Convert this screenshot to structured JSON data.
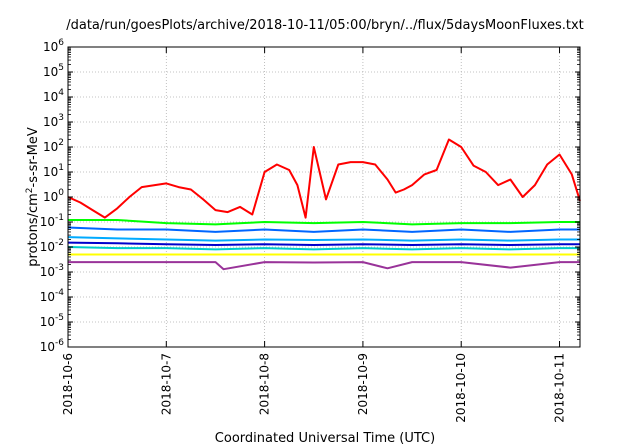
{
  "chart_data": {
    "type": "line",
    "title": "/data/run/goesPlots/archive/2018-10-11/05:00/bryn/../flux/5daysMoonFluxes.txt",
    "xlabel": "Coordinated Universal Time (UTC)",
    "ylabel": "protons/cm²-s-sr-MeV",
    "ylabel_parts": {
      "pre": "protons/cm",
      "sup": "2",
      "post": "-s-sr-MeV"
    },
    "xscale": "time",
    "xlim": [
      "2018-10-06T00:00",
      "2018-10-11T05:00"
    ],
    "xticks": [
      "2018-10-6",
      "2018-10-7",
      "2018-10-8",
      "2018-10-9",
      "2018-10-10",
      "2018-10-11"
    ],
    "yscale": "log",
    "ylim": [
      1e-06,
      1000000.0
    ],
    "yticks": [
      {
        "value": 1e-06,
        "base": "10",
        "exp": "-6"
      },
      {
        "value": 1e-05,
        "base": "10",
        "exp": "-5"
      },
      {
        "value": 0.0001,
        "base": "10",
        "exp": "-4"
      },
      {
        "value": 0.001,
        "base": "10",
        "exp": "-3"
      },
      {
        "value": 0.01,
        "base": "10",
        "exp": "-2"
      },
      {
        "value": 0.1,
        "base": "10",
        "exp": "-1"
      },
      {
        "value": 1,
        "base": "10",
        "exp": "0"
      },
      {
        "value": 10,
        "base": "10",
        "exp": "1"
      },
      {
        "value": 100,
        "base": "10",
        "exp": "2"
      },
      {
        "value": 1000,
        "base": "10",
        "exp": "3"
      },
      {
        "value": 10000,
        "base": "10",
        "exp": "4"
      },
      {
        "value": 100000,
        "base": "10",
        "exp": "5"
      },
      {
        "value": 1000000,
        "base": "10",
        "exp": "6"
      }
    ],
    "grid": true,
    "series": [
      {
        "color": "#ff0000",
        "x": [
          "2018-10-06T00:00",
          "2018-10-06T03:00",
          "2018-10-06T06:00",
          "2018-10-06T09:00",
          "2018-10-06T12:00",
          "2018-10-06T15:00",
          "2018-10-06T18:00",
          "2018-10-07T00:00",
          "2018-10-07T03:00",
          "2018-10-07T06:00",
          "2018-10-07T09:00",
          "2018-10-07T12:00",
          "2018-10-07T15:00",
          "2018-10-07T18:00",
          "2018-10-07T21:00",
          "2018-10-08T00:00",
          "2018-10-08T03:00",
          "2018-10-08T06:00",
          "2018-10-08T08:00",
          "2018-10-08T10:00",
          "2018-10-08T12:00",
          "2018-10-08T15:00",
          "2018-10-08T18:00",
          "2018-10-08T21:00",
          "2018-10-09T00:00",
          "2018-10-09T03:00",
          "2018-10-09T06:00",
          "2018-10-09T08:00",
          "2018-10-09T10:00",
          "2018-10-09T12:00",
          "2018-10-09T15:00",
          "2018-10-09T18:00",
          "2018-10-09T21:00",
          "2018-10-10T00:00",
          "2018-10-10T03:00",
          "2018-10-10T06:00",
          "2018-10-10T09:00",
          "2018-10-10T12:00",
          "2018-10-10T15:00",
          "2018-10-10T18:00",
          "2018-10-10T21:00",
          "2018-10-11T00:00",
          "2018-10-11T03:00",
          "2018-10-11T05:00"
        ],
        "values": [
          1.0,
          0.6,
          0.3,
          0.15,
          0.35,
          1.0,
          2.5,
          3.5,
          2.5,
          2.0,
          0.8,
          0.3,
          0.25,
          0.4,
          0.2,
          10,
          20,
          12,
          3,
          0.15,
          100,
          0.8,
          20,
          25,
          25,
          20,
          5,
          1.5,
          2,
          3,
          8,
          12,
          200,
          100,
          18,
          10,
          3,
          5,
          1,
          3,
          20,
          50,
          8,
          0.7
        ]
      },
      {
        "color": "#00ff00",
        "x": [
          "2018-10-06T00:00",
          "2018-10-06T12:00",
          "2018-10-07T00:00",
          "2018-10-07T12:00",
          "2018-10-08T00:00",
          "2018-10-08T12:00",
          "2018-10-09T00:00",
          "2018-10-09T12:00",
          "2018-10-10T00:00",
          "2018-10-10T12:00",
          "2018-10-11T00:00",
          "2018-10-11T05:00"
        ],
        "values": [
          0.12,
          0.12,
          0.09,
          0.08,
          0.1,
          0.09,
          0.1,
          0.08,
          0.09,
          0.09,
          0.1,
          0.1
        ]
      },
      {
        "color": "#0066ff",
        "x": [
          "2018-10-06T00:00",
          "2018-10-06T12:00",
          "2018-10-07T00:00",
          "2018-10-07T12:00",
          "2018-10-08T00:00",
          "2018-10-08T12:00",
          "2018-10-09T00:00",
          "2018-10-09T12:00",
          "2018-10-10T00:00",
          "2018-10-10T12:00",
          "2018-10-11T00:00",
          "2018-10-11T05:00"
        ],
        "values": [
          0.06,
          0.05,
          0.05,
          0.04,
          0.05,
          0.04,
          0.05,
          0.04,
          0.05,
          0.04,
          0.05,
          0.05
        ]
      },
      {
        "color": "#00aaff",
        "x": [
          "2018-10-06T00:00",
          "2018-10-06T12:00",
          "2018-10-07T00:00",
          "2018-10-07T12:00",
          "2018-10-08T00:00",
          "2018-10-08T12:00",
          "2018-10-09T00:00",
          "2018-10-09T12:00",
          "2018-10-10T00:00",
          "2018-10-10T12:00",
          "2018-10-11T00:00",
          "2018-10-11T05:00"
        ],
        "values": [
          0.025,
          0.022,
          0.02,
          0.018,
          0.02,
          0.019,
          0.02,
          0.018,
          0.02,
          0.018,
          0.02,
          0.02
        ]
      },
      {
        "color": "#0000cc",
        "x": [
          "2018-10-06T00:00",
          "2018-10-06T12:00",
          "2018-10-07T00:00",
          "2018-10-07T12:00",
          "2018-10-08T00:00",
          "2018-10-08T12:00",
          "2018-10-09T00:00",
          "2018-10-09T12:00",
          "2018-10-10T00:00",
          "2018-10-10T12:00",
          "2018-10-11T00:00",
          "2018-10-11T05:00"
        ],
        "values": [
          0.015,
          0.014,
          0.013,
          0.012,
          0.013,
          0.012,
          0.013,
          0.012,
          0.013,
          0.012,
          0.013,
          0.013
        ]
      },
      {
        "color": "#00cccc",
        "x": [
          "2018-10-06T00:00",
          "2018-10-06T12:00",
          "2018-10-07T00:00",
          "2018-10-07T12:00",
          "2018-10-08T00:00",
          "2018-10-08T12:00",
          "2018-10-09T00:00",
          "2018-10-09T12:00",
          "2018-10-10T00:00",
          "2018-10-10T12:00",
          "2018-10-11T00:00",
          "2018-10-11T05:00"
        ],
        "values": [
          0.01,
          0.009,
          0.009,
          0.008,
          0.009,
          0.008,
          0.009,
          0.008,
          0.009,
          0.008,
          0.009,
          0.009
        ]
      },
      {
        "color": "#ffff00",
        "x": [
          "2018-10-06T00:00",
          "2018-10-06T12:00",
          "2018-10-07T00:00",
          "2018-10-07T12:00",
          "2018-10-08T00:00",
          "2018-10-08T12:00",
          "2018-10-09T00:00",
          "2018-10-09T12:00",
          "2018-10-10T00:00",
          "2018-10-10T12:00",
          "2018-10-11T00:00",
          "2018-10-11T05:00"
        ],
        "values": [
          0.005,
          0.005,
          0.005,
          0.005,
          0.005,
          0.005,
          0.005,
          0.005,
          0.005,
          0.005,
          0.005,
          0.005
        ]
      },
      {
        "color": "#993399",
        "x": [
          "2018-10-06T00:00",
          "2018-10-06T12:00",
          "2018-10-07T00:00",
          "2018-10-07T12:00",
          "2018-10-07T14:00",
          "2018-10-08T00:00",
          "2018-10-08T12:00",
          "2018-10-09T00:00",
          "2018-10-09T06:00",
          "2018-10-09T12:00",
          "2018-10-10T00:00",
          "2018-10-10T12:00",
          "2018-10-11T00:00",
          "2018-10-11T05:00"
        ],
        "values": [
          0.0025,
          0.0025,
          0.0025,
          0.0025,
          0.0013,
          0.0025,
          0.0024,
          0.0025,
          0.0014,
          0.0025,
          0.0025,
          0.0015,
          0.0025,
          0.0025
        ]
      }
    ]
  }
}
